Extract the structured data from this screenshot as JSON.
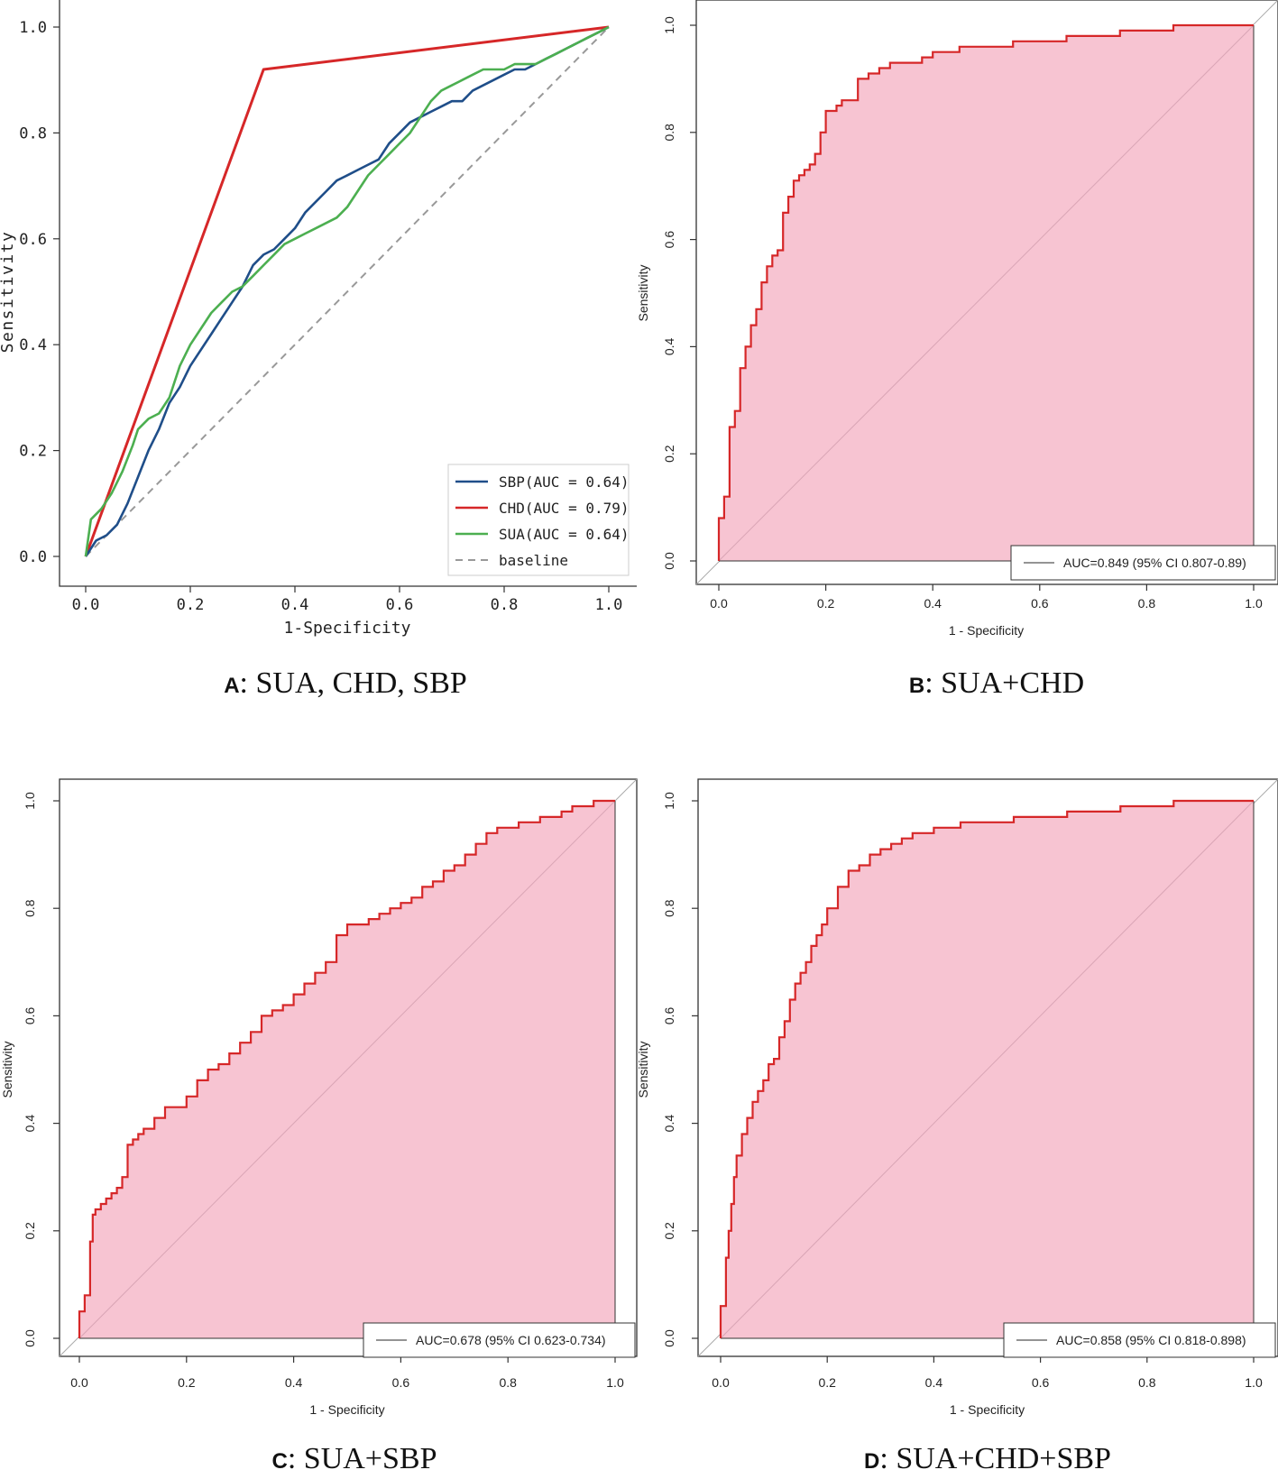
{
  "chart_data": [
    {
      "panel": "A",
      "type": "line",
      "xlabel": "1-Specificity",
      "ylabel": "Sensitivity",
      "xlim": [
        0,
        1
      ],
      "ylim": [
        0,
        1
      ],
      "ticks": [
        "0.0",
        "0.2",
        "0.4",
        "0.6",
        "0.8",
        "1.0"
      ],
      "series": [
        {
          "name": "SBP",
          "legend": "SBP(AUC = 0.64)",
          "color": "#1f4e89",
          "x": [
            0.0,
            0.02,
            0.04,
            0.06,
            0.08,
            0.1,
            0.12,
            0.14,
            0.16,
            0.18,
            0.2,
            0.24,
            0.26,
            0.28,
            0.3,
            0.32,
            0.34,
            0.36,
            0.38,
            0.4,
            0.42,
            0.44,
            0.46,
            0.48,
            0.5,
            0.52,
            0.54,
            0.56,
            0.58,
            0.6,
            0.62,
            0.64,
            0.66,
            0.68,
            0.7,
            0.72,
            0.74,
            0.76,
            0.78,
            0.8,
            0.82,
            0.84,
            0.86,
            0.88,
            0.9,
            0.92,
            0.94,
            0.96,
            0.98,
            1.0
          ],
          "y": [
            0.0,
            0.03,
            0.04,
            0.06,
            0.1,
            0.15,
            0.2,
            0.24,
            0.29,
            0.32,
            0.36,
            0.42,
            0.45,
            0.48,
            0.51,
            0.55,
            0.57,
            0.58,
            0.6,
            0.62,
            0.65,
            0.67,
            0.69,
            0.71,
            0.72,
            0.73,
            0.74,
            0.75,
            0.78,
            0.8,
            0.82,
            0.83,
            0.84,
            0.85,
            0.86,
            0.86,
            0.88,
            0.89,
            0.9,
            0.91,
            0.92,
            0.92,
            0.93,
            0.94,
            0.95,
            0.96,
            0.97,
            0.98,
            0.99,
            1.0
          ]
        },
        {
          "name": "CHD",
          "legend": "CHD(AUC = 0.79)",
          "color": "#d62728",
          "x": [
            0.0,
            0.34,
            1.0
          ],
          "y": [
            0.0,
            0.92,
            1.0
          ]
        },
        {
          "name": "SUA",
          "legend": "SUA(AUC = 0.64)",
          "color": "#4caf50",
          "x": [
            0.0,
            0.01,
            0.03,
            0.05,
            0.07,
            0.09,
            0.1,
            0.12,
            0.14,
            0.16,
            0.18,
            0.2,
            0.22,
            0.24,
            0.26,
            0.28,
            0.3,
            0.32,
            0.34,
            0.36,
            0.38,
            0.4,
            0.42,
            0.44,
            0.46,
            0.48,
            0.5,
            0.52,
            0.54,
            0.56,
            0.58,
            0.6,
            0.62,
            0.64,
            0.66,
            0.68,
            0.7,
            0.72,
            0.74,
            0.76,
            0.78,
            0.8,
            0.82,
            0.84,
            0.86,
            0.88,
            0.9,
            0.92,
            0.94,
            0.96,
            0.98,
            1.0
          ],
          "y": [
            0.0,
            0.07,
            0.09,
            0.12,
            0.16,
            0.21,
            0.24,
            0.26,
            0.27,
            0.3,
            0.36,
            0.4,
            0.43,
            0.46,
            0.48,
            0.5,
            0.51,
            0.53,
            0.55,
            0.57,
            0.59,
            0.6,
            0.61,
            0.62,
            0.63,
            0.64,
            0.66,
            0.69,
            0.72,
            0.74,
            0.76,
            0.78,
            0.8,
            0.83,
            0.86,
            0.88,
            0.89,
            0.9,
            0.91,
            0.92,
            0.92,
            0.92,
            0.93,
            0.93,
            0.93,
            0.94,
            0.95,
            0.96,
            0.97,
            0.98,
            0.99,
            1.0
          ]
        },
        {
          "name": "baseline",
          "legend": "baseline",
          "color": "#999999",
          "x": [
            0,
            1
          ],
          "y": [
            0,
            1
          ]
        }
      ],
      "caption_letter": "A",
      "caption_text": ": SUA, CHD, SBP"
    },
    {
      "panel": "B",
      "type": "area",
      "xlabel": "1 - Specificity",
      "ylabel": "Sensitivity",
      "xlim": [
        0,
        1
      ],
      "ylim": [
        0,
        1
      ],
      "ticks": [
        "0.0",
        "0.2",
        "0.4",
        "0.6",
        "0.8",
        "1.0"
      ],
      "legend": "AUC=0.849 (95% CI 0.807-0.89)",
      "x": [
        0.0,
        0.01,
        0.02,
        0.03,
        0.04,
        0.05,
        0.06,
        0.07,
        0.08,
        0.09,
        0.1,
        0.11,
        0.12,
        0.13,
        0.14,
        0.15,
        0.16,
        0.17,
        0.18,
        0.19,
        0.2,
        0.22,
        0.23,
        0.24,
        0.26,
        0.28,
        0.3,
        0.32,
        0.34,
        0.36,
        0.38,
        0.4,
        0.45,
        0.5,
        0.55,
        0.6,
        0.65,
        0.7,
        0.75,
        0.8,
        0.85,
        0.9,
        1.0
      ],
      "y": [
        0.0,
        0.08,
        0.12,
        0.25,
        0.28,
        0.36,
        0.4,
        0.44,
        0.47,
        0.52,
        0.55,
        0.57,
        0.58,
        0.65,
        0.68,
        0.71,
        0.72,
        0.73,
        0.74,
        0.76,
        0.8,
        0.84,
        0.85,
        0.86,
        0.86,
        0.9,
        0.91,
        0.92,
        0.93,
        0.93,
        0.93,
        0.94,
        0.95,
        0.96,
        0.96,
        0.97,
        0.97,
        0.98,
        0.98,
        0.99,
        0.99,
        1.0,
        1.0
      ]
    },
    {
      "panel": "C",
      "type": "area",
      "xlabel": "1 - Specificity",
      "ylabel": "Sensitivity",
      "xlim": [
        0,
        1
      ],
      "ylim": [
        0,
        1
      ],
      "ticks": [
        "0.0",
        "0.2",
        "0.4",
        "0.6",
        "0.8",
        "1.0"
      ],
      "legend": "AUC=0.678 (95% CI 0.623-0.734)",
      "x": [
        0.0,
        0.01,
        0.02,
        0.025,
        0.03,
        0.04,
        0.05,
        0.06,
        0.07,
        0.08,
        0.09,
        0.1,
        0.11,
        0.12,
        0.14,
        0.16,
        0.18,
        0.2,
        0.22,
        0.24,
        0.26,
        0.28,
        0.3,
        0.32,
        0.34,
        0.36,
        0.38,
        0.4,
        0.42,
        0.44,
        0.46,
        0.48,
        0.5,
        0.52,
        0.54,
        0.56,
        0.58,
        0.6,
        0.62,
        0.64,
        0.66,
        0.68,
        0.7,
        0.72,
        0.74,
        0.76,
        0.78,
        0.8,
        0.82,
        0.84,
        0.86,
        0.88,
        0.9,
        0.92,
        0.94,
        0.96,
        0.98,
        1.0
      ],
      "y": [
        0.0,
        0.05,
        0.08,
        0.18,
        0.23,
        0.24,
        0.25,
        0.26,
        0.27,
        0.28,
        0.3,
        0.36,
        0.37,
        0.38,
        0.39,
        0.41,
        0.43,
        0.43,
        0.45,
        0.48,
        0.5,
        0.51,
        0.53,
        0.55,
        0.57,
        0.6,
        0.61,
        0.62,
        0.64,
        0.66,
        0.68,
        0.7,
        0.75,
        0.77,
        0.77,
        0.78,
        0.79,
        0.8,
        0.81,
        0.82,
        0.84,
        0.85,
        0.87,
        0.88,
        0.9,
        0.92,
        0.94,
        0.95,
        0.95,
        0.96,
        0.96,
        0.97,
        0.97,
        0.98,
        0.99,
        0.99,
        1.0,
        1.0
      ]
    },
    {
      "panel": "D",
      "type": "area",
      "xlabel": "1 - Specificity",
      "ylabel": "Sensitivity",
      "xlim": [
        0,
        1
      ],
      "ylim": [
        0,
        1
      ],
      "ticks": [
        "0.0",
        "0.2",
        "0.4",
        "0.6",
        "0.8",
        "1.0"
      ],
      "legend": "AUC=0.858 (95% CI 0.818-0.898)",
      "x": [
        0.0,
        0.01,
        0.015,
        0.02,
        0.025,
        0.03,
        0.04,
        0.05,
        0.06,
        0.07,
        0.08,
        0.09,
        0.1,
        0.11,
        0.12,
        0.13,
        0.14,
        0.15,
        0.16,
        0.17,
        0.18,
        0.19,
        0.2,
        0.22,
        0.24,
        0.26,
        0.28,
        0.3,
        0.32,
        0.34,
        0.36,
        0.4,
        0.45,
        0.5,
        0.55,
        0.6,
        0.65,
        0.7,
        0.75,
        0.8,
        0.85,
        0.9,
        1.0
      ],
      "y": [
        0.0,
        0.06,
        0.15,
        0.2,
        0.25,
        0.3,
        0.34,
        0.38,
        0.41,
        0.44,
        0.46,
        0.48,
        0.51,
        0.52,
        0.56,
        0.59,
        0.63,
        0.66,
        0.68,
        0.7,
        0.73,
        0.75,
        0.77,
        0.8,
        0.84,
        0.87,
        0.88,
        0.9,
        0.91,
        0.92,
        0.93,
        0.94,
        0.95,
        0.96,
        0.96,
        0.97,
        0.97,
        0.98,
        0.98,
        0.99,
        0.99,
        1.0,
        1.0
      ]
    }
  ]
}
